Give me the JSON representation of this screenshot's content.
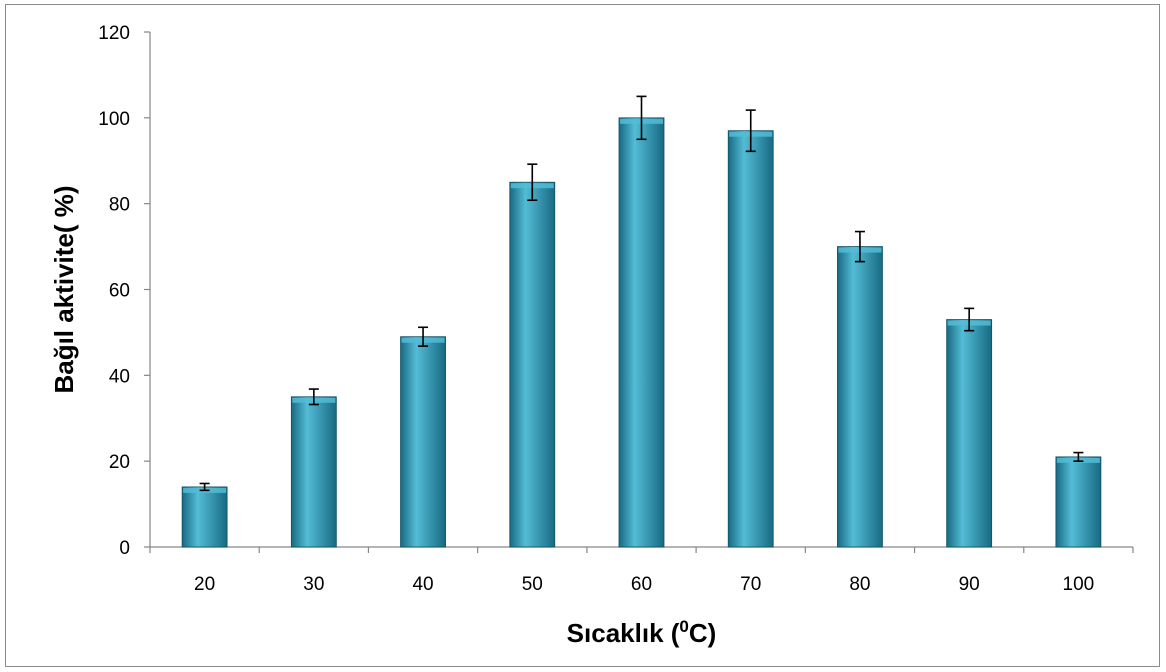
{
  "chart_data": {
    "type": "bar",
    "title": "",
    "xlabel": "Sıcaklık (",
    "xlabel_superscript": "0",
    "xlabel_suffix": "C)",
    "ylabel": "Bağıl aktivite( %)",
    "categories": [
      "20",
      "30",
      "40",
      "50",
      "60",
      "70",
      "80",
      "90",
      "100"
    ],
    "values": [
      14,
      35,
      49,
      85,
      100,
      97,
      70,
      53,
      21
    ],
    "errors": [
      0.8,
      1.8,
      2.2,
      4.2,
      5.0,
      4.8,
      3.5,
      2.6,
      1.0
    ],
    "ylim": [
      0,
      120
    ],
    "yticks": [
      "0",
      "20",
      "40",
      "60",
      "80",
      "100",
      "120"
    ],
    "grid": false,
    "legend": "none",
    "colors": {
      "bar_light": "#54bcd6",
      "bar_mid": "#2f9cb8",
      "bar_dark": "#176a82",
      "bar_edge": "#0f4f63",
      "axis": "#868686",
      "error_bar": "#000000"
    }
  }
}
